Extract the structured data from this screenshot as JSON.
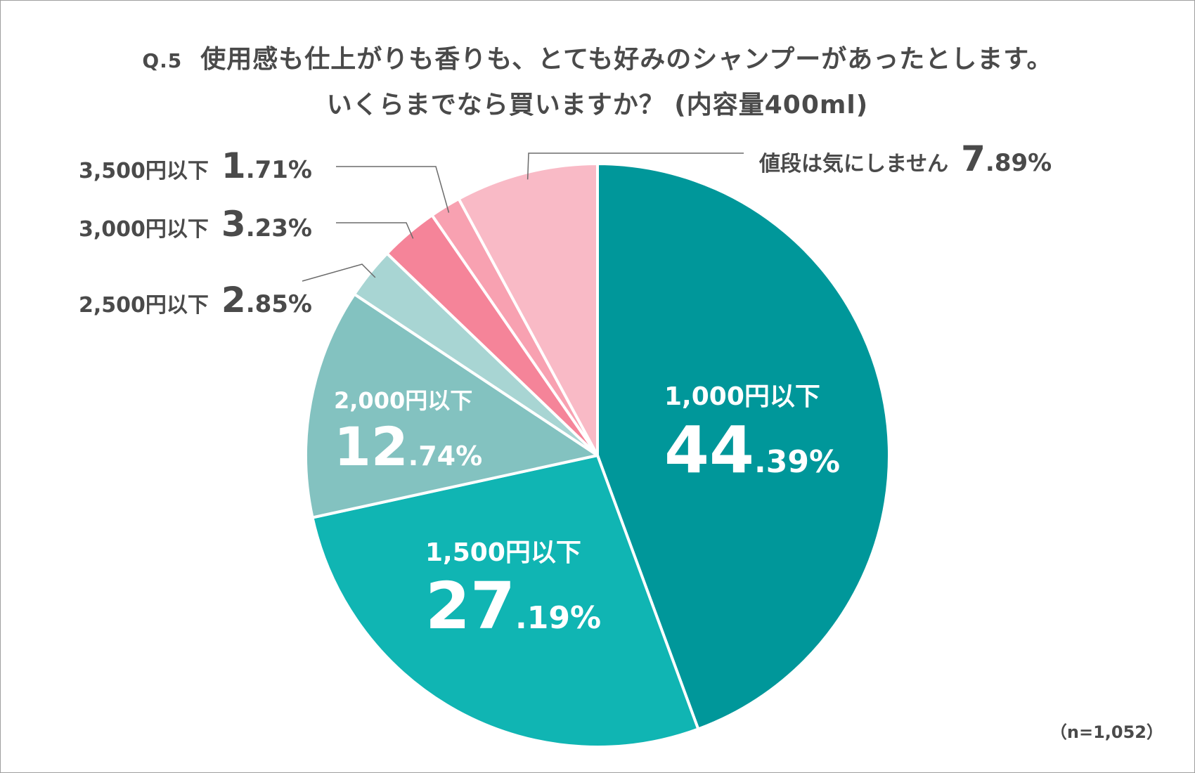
{
  "chart_data": {
    "type": "pie",
    "title_prefix": "Q.5",
    "title_line1": "使用感も仕上がりも香りも、とても好みのシャンプーがあったとします。",
    "title_line2": "いくらまでなら買いますか？ (内容量400ml)",
    "note": "（n=1,052）",
    "slices": [
      {
        "label": "1,000円以下",
        "value": 44.39,
        "int": "44",
        "dec": ".39%",
        "color": "#00979a"
      },
      {
        "label": "1,500円以下",
        "value": 27.19,
        "int": "27",
        "dec": ".19%",
        "color": "#10b5b3"
      },
      {
        "label": "2,000円以下",
        "value": 12.74,
        "int": "12",
        "dec": ".74%",
        "color": "#83c2c0"
      },
      {
        "label": "2,500円以下",
        "value": 2.85,
        "int": "2",
        "dec": ".85%",
        "color": "#a8d5d3"
      },
      {
        "label": "3,000円以下",
        "value": 3.23,
        "int": "3",
        "dec": ".23%",
        "color": "#f58499"
      },
      {
        "label": "3,500円以下",
        "value": 1.71,
        "int": "1",
        "dec": ".71%",
        "color": "#f8a1b1"
      },
      {
        "label": "値段は気にしません",
        "value": 7.89,
        "int": "7",
        "dec": ".89%",
        "color": "#f9bac6"
      }
    ]
  }
}
